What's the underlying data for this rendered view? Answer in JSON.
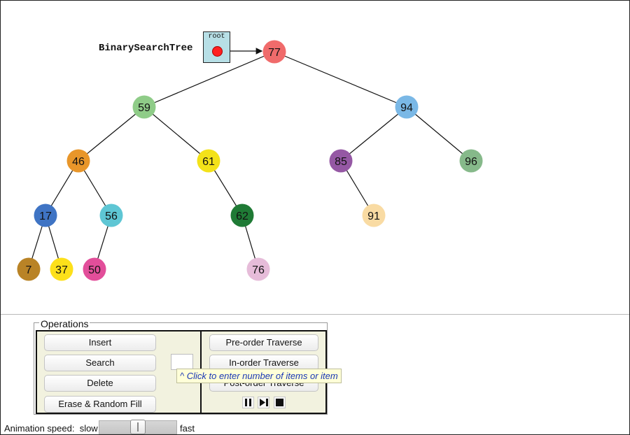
{
  "structure": {
    "title": "BinarySearchTree",
    "root_label": "root"
  },
  "tree": {
    "nodes": [
      {
        "value": "77",
        "color": "#f06b6b"
      },
      {
        "value": "59",
        "color": "#8fcc88"
      },
      {
        "value": "94",
        "color": "#7ab8e6"
      },
      {
        "value": "46",
        "color": "#e8962a"
      },
      {
        "value": "61",
        "color": "#f3e219"
      },
      {
        "value": "85",
        "color": "#9558a4"
      },
      {
        "value": "96",
        "color": "#86b98a"
      },
      {
        "value": "17",
        "color": "#3f74c4"
      },
      {
        "value": "56",
        "color": "#5ec6d4"
      },
      {
        "value": "62",
        "color": "#1f7a35"
      },
      {
        "value": "91",
        "color": "#f9dba3"
      },
      {
        "value": "7",
        "color": "#b98326"
      },
      {
        "value": "37",
        "color": "#fde01a"
      },
      {
        "value": "50",
        "color": "#e24e9a"
      },
      {
        "value": "76",
        "color": "#e6bcd9"
      }
    ],
    "edges": [
      [
        "77",
        "59"
      ],
      [
        "77",
        "94"
      ],
      [
        "59",
        "46"
      ],
      [
        "59",
        "61"
      ],
      [
        "94",
        "85"
      ],
      [
        "94",
        "96"
      ],
      [
        "46",
        "17"
      ],
      [
        "46",
        "56"
      ],
      [
        "61",
        "62"
      ],
      [
        "85",
        "91"
      ],
      [
        "17",
        "7"
      ],
      [
        "17",
        "37"
      ],
      [
        "56",
        "50"
      ],
      [
        "62",
        "76"
      ]
    ]
  },
  "operations": {
    "legend": "Operations",
    "buttons": {
      "insert": "Insert",
      "search": "Search",
      "delete": "Delete",
      "erase_fill": "Erase & Random Fill",
      "preorder": "Pre-order Traverse",
      "inorder": "In-order Traverse",
      "postorder": "Post-order Traverse"
    },
    "input_value": "",
    "tooltip": "^ Click to enter number of items or item",
    "controls": [
      "pause-icon",
      "step-icon",
      "stop-icon"
    ]
  },
  "speed": {
    "label": "Animation speed:",
    "slow": "slow",
    "fast": "fast"
  }
}
